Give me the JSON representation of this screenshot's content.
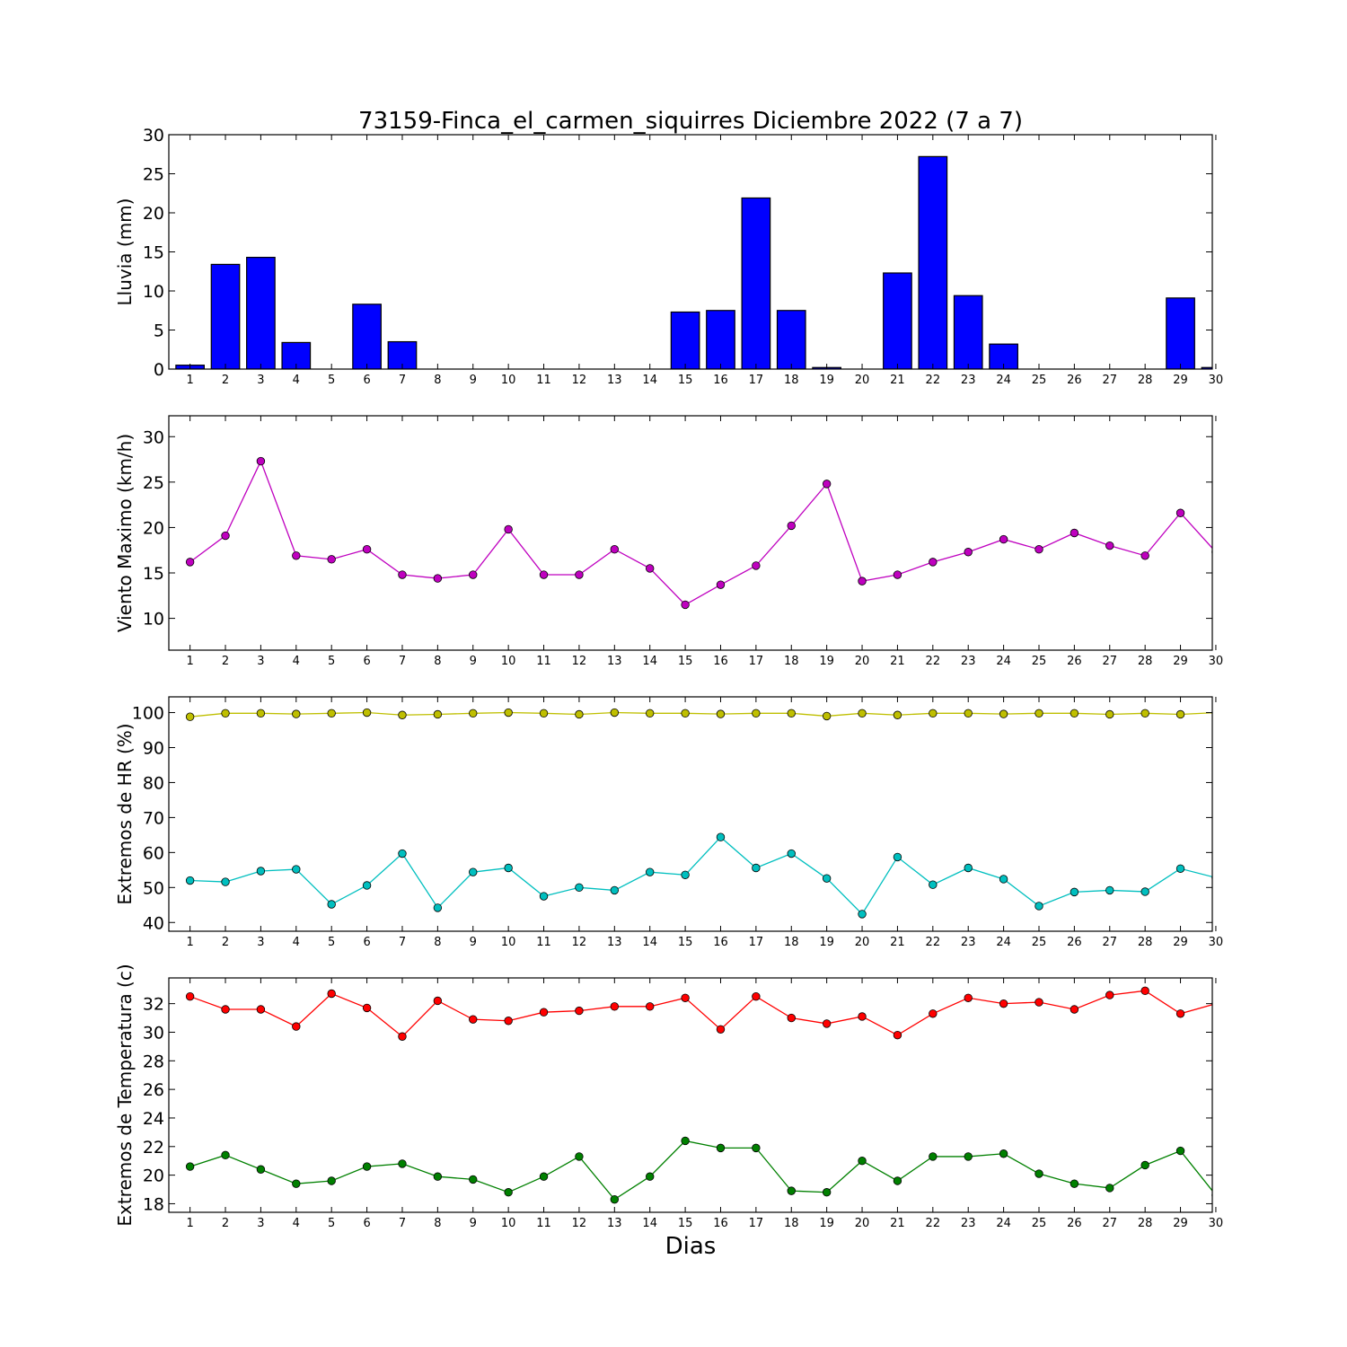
{
  "chart_data": {
    "title": "73159-Finca_el_carmen_siquirres Diciembre 2022  (7 a 7)",
    "xlabel": "Dias",
    "x": [
      1,
      2,
      3,
      4,
      5,
      6,
      7,
      8,
      9,
      10,
      11,
      12,
      13,
      14,
      15,
      16,
      17,
      18,
      19,
      20,
      21,
      22,
      23,
      24,
      25,
      26,
      27,
      28,
      29,
      30
    ],
    "panels": [
      {
        "type": "bar",
        "ylabel": "Lluvia (mm)",
        "ylim": [
          0,
          30
        ],
        "yticks": [
          0,
          5,
          10,
          15,
          20,
          25,
          30
        ],
        "series": [
          {
            "color": "#0000ff",
            "values": [
              0.5,
              13.4,
              14.3,
              3.4,
              0,
              8.3,
              3.5,
              0,
              0,
              0,
              0,
              0,
              0,
              0,
              7.3,
              7.5,
              21.9,
              7.5,
              0.2,
              0,
              12.3,
              27.2,
              9.4,
              3.2,
              0,
              0,
              0,
              0,
              9.1,
              0.2
            ]
          }
        ]
      },
      {
        "type": "line",
        "ylabel": "Viento Maximo (km/h)",
        "ylim": [
          6.5,
          32.3
        ],
        "yticks": [
          10,
          15,
          20,
          25,
          30
        ],
        "series": [
          {
            "color": "#bf00bf",
            "values": [
              16.2,
              19.1,
              27.3,
              16.9,
              16.5,
              17.6,
              14.8,
              14.4,
              14.8,
              19.8,
              14.8,
              14.8,
              17.6,
              15.5,
              11.5,
              13.7,
              15.8,
              20.2,
              24.8,
              14.1,
              14.8,
              16.2,
              17.3,
              18.7,
              17.6,
              19.4,
              18.0,
              16.9,
              21.6,
              17.3
            ]
          }
        ]
      },
      {
        "type": "line",
        "ylabel": "Extremos de HR (%)",
        "ylim": [
          37.5,
          104.5
        ],
        "yticks": [
          40,
          50,
          60,
          70,
          80,
          90,
          100
        ],
        "series": [
          {
            "color": "#bfbf00",
            "values": [
              98.8,
              99.8,
              99.8,
              99.6,
              99.8,
              100,
              99.3,
              99.5,
              99.8,
              100,
              99.8,
              99.5,
              100,
              99.8,
              99.8,
              99.6,
              99.8,
              99.8,
              99.0,
              99.8,
              99.3,
              99.8,
              99.8,
              99.6,
              99.8,
              99.8,
              99.5,
              99.8,
              99.5,
              100
            ]
          },
          {
            "color": "#00bfbf",
            "values": [
              52,
              51.6,
              54.7,
              55.2,
              45.2,
              50.6,
              59.7,
              44.2,
              54.4,
              55.6,
              47.5,
              50.0,
              49.2,
              54.4,
              53.6,
              64.4,
              55.6,
              59.7,
              52.6,
              42.4,
              58.7,
              50.8,
              55.6,
              52.4,
              44.7,
              48.7,
              49.2,
              48.8,
              55.4,
              52.8
            ]
          }
        ]
      },
      {
        "type": "line",
        "ylabel": "Extremos de Temperatura (c)",
        "ylim": [
          17.4,
          33.8
        ],
        "yticks": [
          18,
          20,
          22,
          24,
          26,
          28,
          30,
          32
        ],
        "series": [
          {
            "color": "#ff0000",
            "values": [
              32.5,
              31.6,
              31.6,
              30.4,
              32.7,
              31.7,
              29.7,
              32.2,
              30.9,
              30.8,
              31.4,
              31.5,
              31.8,
              31.8,
              32.4,
              30.2,
              32.5,
              31.0,
              30.6,
              31.1,
              29.8,
              31.3,
              32.4,
              32.0,
              32.1,
              31.6,
              32.6,
              32.9,
              31.3,
              32.0
            ]
          },
          {
            "color": "#008000",
            "values": [
              20.6,
              21.4,
              20.4,
              19.4,
              19.6,
              20.6,
              20.8,
              19.9,
              19.7,
              18.8,
              19.9,
              21.3,
              18.3,
              19.9,
              22.4,
              21.9,
              21.9,
              18.9,
              18.8,
              21.0,
              19.6,
              21.3,
              21.3,
              21.5,
              20.1,
              19.4,
              19.1,
              20.7,
              21.7,
              18.6
            ]
          }
        ]
      }
    ]
  }
}
